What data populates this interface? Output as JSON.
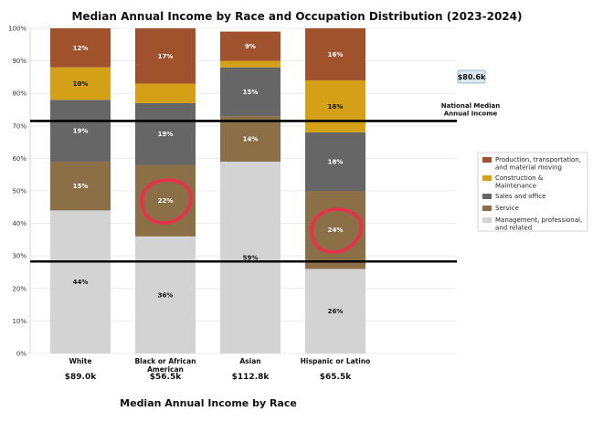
{
  "chart_data": {
    "type": "bar",
    "stacked": true,
    "title": "Median Annual Income by Race and Occupation Distribution (2023-2024)",
    "xlabel": "Median Annual Income by Race",
    "ylabel": "",
    "ylim": [
      0,
      100
    ],
    "y_ticks": [
      "0%",
      "10%",
      "20%",
      "30%",
      "40%",
      "50%",
      "60%",
      "70%",
      "80%",
      "90%",
      "100%"
    ],
    "categories": [
      [
        "White"
      ],
      [
        "Black or African",
        "American"
      ],
      [
        "Asian"
      ],
      [
        "Hispanic or Latino"
      ]
    ],
    "incomes": [
      "$89.0k",
      "$56.5k",
      "$112.8k",
      "$65.5k"
    ],
    "series": [
      {
        "name": "Management, professional, and related",
        "legend_lines": [
          "Management, professional,",
          "and related"
        ],
        "color": "#d3d3d3",
        "text_color": "#111111",
        "values": [
          44,
          36,
          59,
          26
        ],
        "labels": [
          "44%",
          "36%",
          "59%",
          "26%"
        ]
      },
      {
        "name": "Service",
        "legend_lines": [
          "Service"
        ],
        "color": "#8b6f47",
        "text_color": "#ffffff",
        "values": [
          15,
          22,
          14,
          24
        ],
        "labels": [
          "15%",
          "22%",
          "14%",
          "24%"
        ]
      },
      {
        "name": "Sales and office",
        "legend_lines": [
          "Sales and office"
        ],
        "color": "#666666",
        "text_color": "#ffffff",
        "values": [
          19,
          19,
          15,
          18
        ],
        "labels": [
          "19%",
          "19%",
          "15%",
          "18%"
        ]
      },
      {
        "name": "Construction & Maintenance",
        "legend_lines": [
          "Construction &",
          "Maintenance"
        ],
        "color": "#d4a017",
        "text_color": "#111111",
        "values": [
          10,
          6,
          2,
          16
        ],
        "labels": [
          "10%",
          "",
          "",
          "16%"
        ]
      },
      {
        "name": "Production, transportation, and material moving",
        "legend_lines": [
          "Production, transportation,",
          "and material moving"
        ],
        "color": "#a0522d",
        "text_color": "#ffffff",
        "values": [
          12,
          17,
          9,
          16
        ],
        "labels": [
          "12%",
          "17%",
          "9%",
          "16%"
        ]
      }
    ],
    "reference": {
      "name_lines": [
        "National Median",
        "Annual Income"
      ],
      "value_label": "$80.6k",
      "lines_at": [
        71.5,
        28.3
      ]
    },
    "highlights": [
      {
        "category_index": 1,
        "series_index": 1
      },
      {
        "category_index": 3,
        "series_index": 1
      }
    ],
    "legend_position": "right",
    "grid": true
  }
}
